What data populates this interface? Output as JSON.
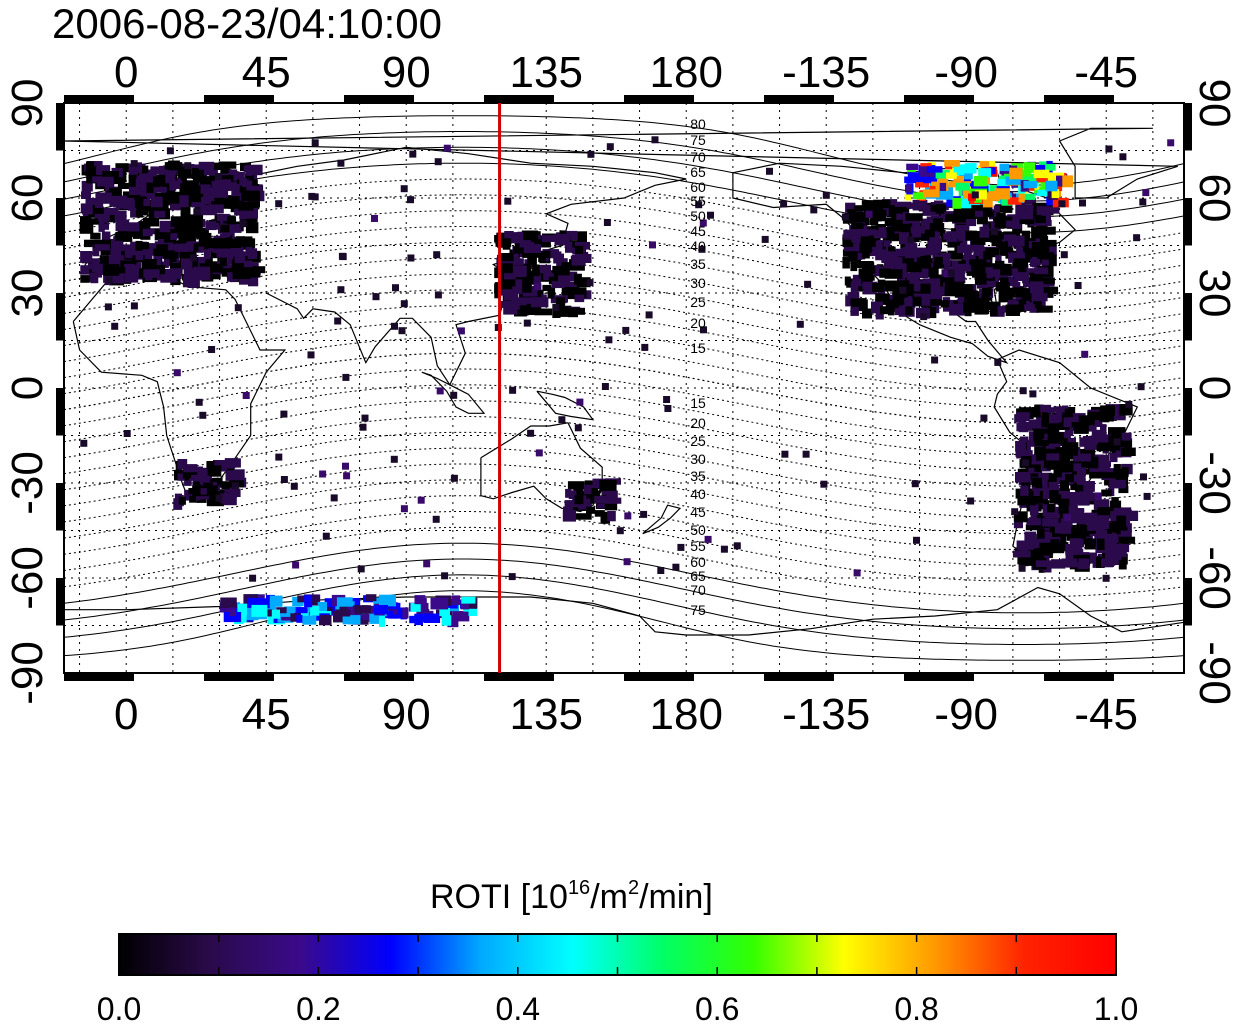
{
  "title": "2006-08-23/04:10:00",
  "map": {
    "bottom_lon_ticks": [
      "0",
      "45",
      "90",
      "135",
      "180",
      "-135",
      "-90",
      "-45"
    ],
    "top_lon_ticks": [
      "0",
      "45",
      "90",
      "135",
      "180",
      "-135",
      "-90",
      "-45"
    ],
    "left_lat_ticks": [
      "90",
      "60",
      "30",
      "0",
      "-30",
      "-60",
      "-90"
    ],
    "right_lat_ticks": [
      "90",
      "60",
      "30",
      "0",
      "-30",
      "-60",
      "-90"
    ],
    "marker_longitude": 120,
    "marker_color": "#d40000",
    "north_contour_labels": [
      "80",
      "75",
      "70",
      "65",
      "60",
      "55",
      "50",
      "45",
      "40",
      "35",
      "30",
      "25",
      "20",
      "15"
    ],
    "south_contour_labels": [
      "15",
      "20",
      "25",
      "30",
      "35",
      "40",
      "45",
      "50",
      "55",
      "60",
      "65",
      "70",
      "75"
    ]
  },
  "colorbar": {
    "title_prefix": "ROTI  [10",
    "title_sup1": "16",
    "title_mid": "/m",
    "title_sup2": "2",
    "title_suffix": "/min]",
    "ticks": [
      "0.0",
      "0.2",
      "0.4",
      "0.6",
      "0.8",
      "1.0"
    ],
    "range": [
      0.0,
      1.0
    ],
    "colors": [
      "#000000",
      "#2a0a4a",
      "#3a0a8a",
      "#0000ff",
      "#00aaff",
      "#00ffff",
      "#00ff66",
      "#33ff00",
      "#ffff00",
      "#ff9900",
      "#ff2200",
      "#ff0000"
    ]
  },
  "chart_data": {
    "type": "heatmap",
    "title": "2006-08-23/04:10:00",
    "colorbar_label": "ROTI [10^16/m^2/min]",
    "colorbar_range": [
      0.0,
      1.0
    ],
    "xlim": [
      -20,
      340
    ],
    "ylim": [
      -90,
      90
    ],
    "marker_longitude": 120,
    "observation_regions": [
      {
        "region": "Europe",
        "lon": [
          -15,
          40
        ],
        "lat": [
          35,
          72
        ],
        "roti": 0.05
      },
      {
        "region": "North America",
        "lon": [
          -130,
          -65
        ],
        "lat": [
          25,
          60
        ],
        "roti": 0.05
      },
      {
        "region": "East Asia",
        "lon": [
          118,
          145
        ],
        "lat": [
          25,
          50
        ],
        "roti": 0.05
      },
      {
        "region": "South Africa",
        "lon": [
          15,
          35
        ],
        "lat": [
          -35,
          -22
        ],
        "roti": 0.05
      },
      {
        "region": "Australia",
        "lon": [
          140,
          155
        ],
        "lat": [
          -40,
          -28
        ],
        "roti": 0.05
      },
      {
        "region": "South America",
        "lon": [
          -75,
          -40
        ],
        "lat": [
          -55,
          -5
        ],
        "roti": 0.05
      },
      {
        "region": "Canadian Arctic",
        "lon": [
          -110,
          -60
        ],
        "lat": [
          60,
          72
        ],
        "roti": 0.6
      },
      {
        "region": "Antarctic coast",
        "lon": [
          30,
          110
        ],
        "lat": [
          -72,
          -65
        ],
        "roti": 0.3
      }
    ]
  }
}
